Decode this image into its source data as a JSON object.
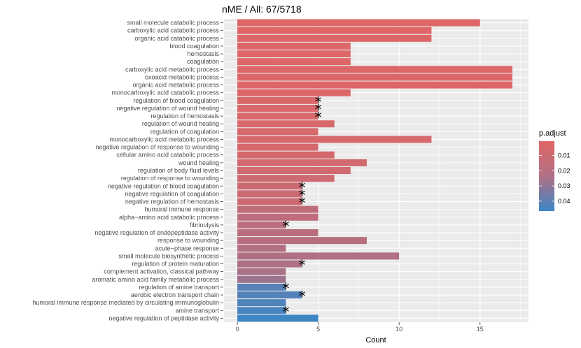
{
  "chart_data": {
    "type": "bar",
    "orientation": "horizontal",
    "title": "nME / All: 67/5718",
    "xlabel": "Count",
    "ylabel": "",
    "xlim": [
      -0.8,
      17.8
    ],
    "xticks": [
      0,
      5,
      10,
      15
    ],
    "tick_labels": [
      "0",
      "5",
      "10",
      "15"
    ],
    "categories": [
      "small molecule catabolic process",
      "carboxylic acid catabolic process",
      "organic acid catabolic process",
      "blood coagulation",
      "hemostasis",
      "coagulation",
      "carboxylic acid metabolic process",
      "oxoacid metabolic process",
      "organic acid metabolic process",
      "monocarboxylic acid catabolic process",
      "regulation of blood coagulation",
      "negative regulation of wound healing",
      "regulation of hemostasis",
      "regulation of wound healing",
      "regulation of coagulation",
      "monocarboxylic acid metabolic process",
      "negative regulation of response to wounding",
      "cellular amino acid catabolic process",
      "wound healing",
      "regulation of body fluid levels",
      "regulation of response to wounding",
      "negative regulation of blood coagulation",
      "negative regulation of coagulation",
      "negative regulation of hemostasis",
      "humoral immune response",
      "alpha−amino acid catabolic process",
      "fibrinolysis",
      "negative regulation of endopeptidase activity",
      "response to wounding",
      "acute−phase response",
      "small molecule biosynthetic process",
      "regulation of protein maturation",
      "complement activation, classical pathway",
      "aromatic amino acid family metabolic process",
      "regulation of amine transport",
      "aerobic electron transport chain",
      "humoral immune response mediated by circulating immunoglobulin",
      "amine transport",
      "negative regulation of peptidase activity"
    ],
    "values": [
      15,
      12,
      12,
      7,
      7,
      7,
      17,
      17,
      17,
      7,
      5,
      5,
      5,
      6,
      5,
      12,
      5,
      6,
      8,
      7,
      6,
      4,
      4,
      4,
      5,
      5,
      3,
      5,
      8,
      3,
      10,
      4,
      3,
      3,
      3,
      4,
      3,
      3,
      5
    ],
    "p_adjust": [
      0.001,
      0.001,
      0.001,
      0.002,
      0.002,
      0.002,
      0.002,
      0.002,
      0.002,
      0.003,
      0.004,
      0.004,
      0.004,
      0.005,
      0.005,
      0.005,
      0.006,
      0.006,
      0.007,
      0.008,
      0.009,
      0.01,
      0.01,
      0.01,
      0.016,
      0.017,
      0.018,
      0.019,
      0.02,
      0.022,
      0.023,
      0.024,
      0.025,
      0.027,
      0.041,
      0.042,
      0.043,
      0.044,
      0.046
    ],
    "starred": [
      false,
      false,
      false,
      false,
      false,
      false,
      false,
      false,
      false,
      false,
      true,
      true,
      true,
      false,
      false,
      false,
      false,
      false,
      false,
      false,
      false,
      true,
      true,
      true,
      false,
      false,
      true,
      false,
      false,
      false,
      false,
      true,
      false,
      false,
      true,
      true,
      false,
      true,
      false
    ],
    "star_symbol": "*",
    "legend": {
      "title": "p.adjust",
      "position": "right",
      "range": [
        0.0005,
        0.0465
      ],
      "ticks": [
        0.01,
        0.02,
        0.03,
        0.04
      ],
      "tick_labels": [
        "0.01",
        "0.02",
        "0.03",
        "0.04"
      ],
      "color_low": "#E06666",
      "color_high": "#3C86C6"
    },
    "panel_background": "#EBEBEB",
    "grid_color": "#FFFFFF"
  }
}
